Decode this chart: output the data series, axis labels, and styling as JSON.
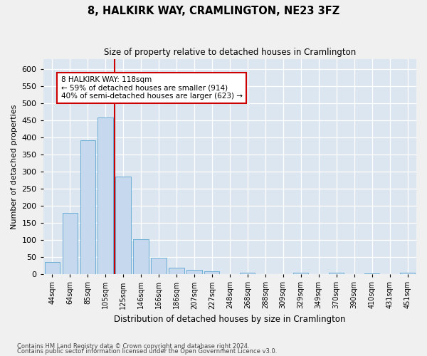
{
  "title": "8, HALKIRK WAY, CRAMLINGTON, NE23 3FZ",
  "subtitle": "Size of property relative to detached houses in Cramlington",
  "xlabel": "Distribution of detached houses by size in Cramlington",
  "ylabel": "Number of detached properties",
  "categories": [
    "44sqm",
    "64sqm",
    "85sqm",
    "105sqm",
    "125sqm",
    "146sqm",
    "166sqm",
    "186sqm",
    "207sqm",
    "227sqm",
    "248sqm",
    "268sqm",
    "288sqm",
    "309sqm",
    "329sqm",
    "349sqm",
    "370sqm",
    "390sqm",
    "410sqm",
    "431sqm",
    "451sqm"
  ],
  "values": [
    35,
    180,
    393,
    460,
    285,
    102,
    48,
    20,
    13,
    8,
    0,
    5,
    0,
    0,
    4,
    0,
    4,
    0,
    3,
    0,
    4
  ],
  "bar_color": "#c5d8ed",
  "bar_edgecolor": "#6baed6",
  "vline_color": "#cc0000",
  "annotation_line1": "8 HALKIRK WAY: 118sqm",
  "annotation_line2": "← 59% of detached houses are smaller (914)",
  "annotation_line3": "40% of semi-detached houses are larger (623) →",
  "annotation_box_facecolor": "#ffffff",
  "annotation_box_edgecolor": "#cc0000",
  "plot_bg_color": "#dce6f1",
  "fig_bg_color": "#f0f0f0",
  "ylim": [
    0,
    630
  ],
  "yticks": [
    0,
    50,
    100,
    150,
    200,
    250,
    300,
    350,
    400,
    450,
    500,
    550,
    600
  ],
  "footer1": "Contains HM Land Registry data © Crown copyright and database right 2024.",
  "footer2": "Contains public sector information licensed under the Open Government Licence v3.0."
}
